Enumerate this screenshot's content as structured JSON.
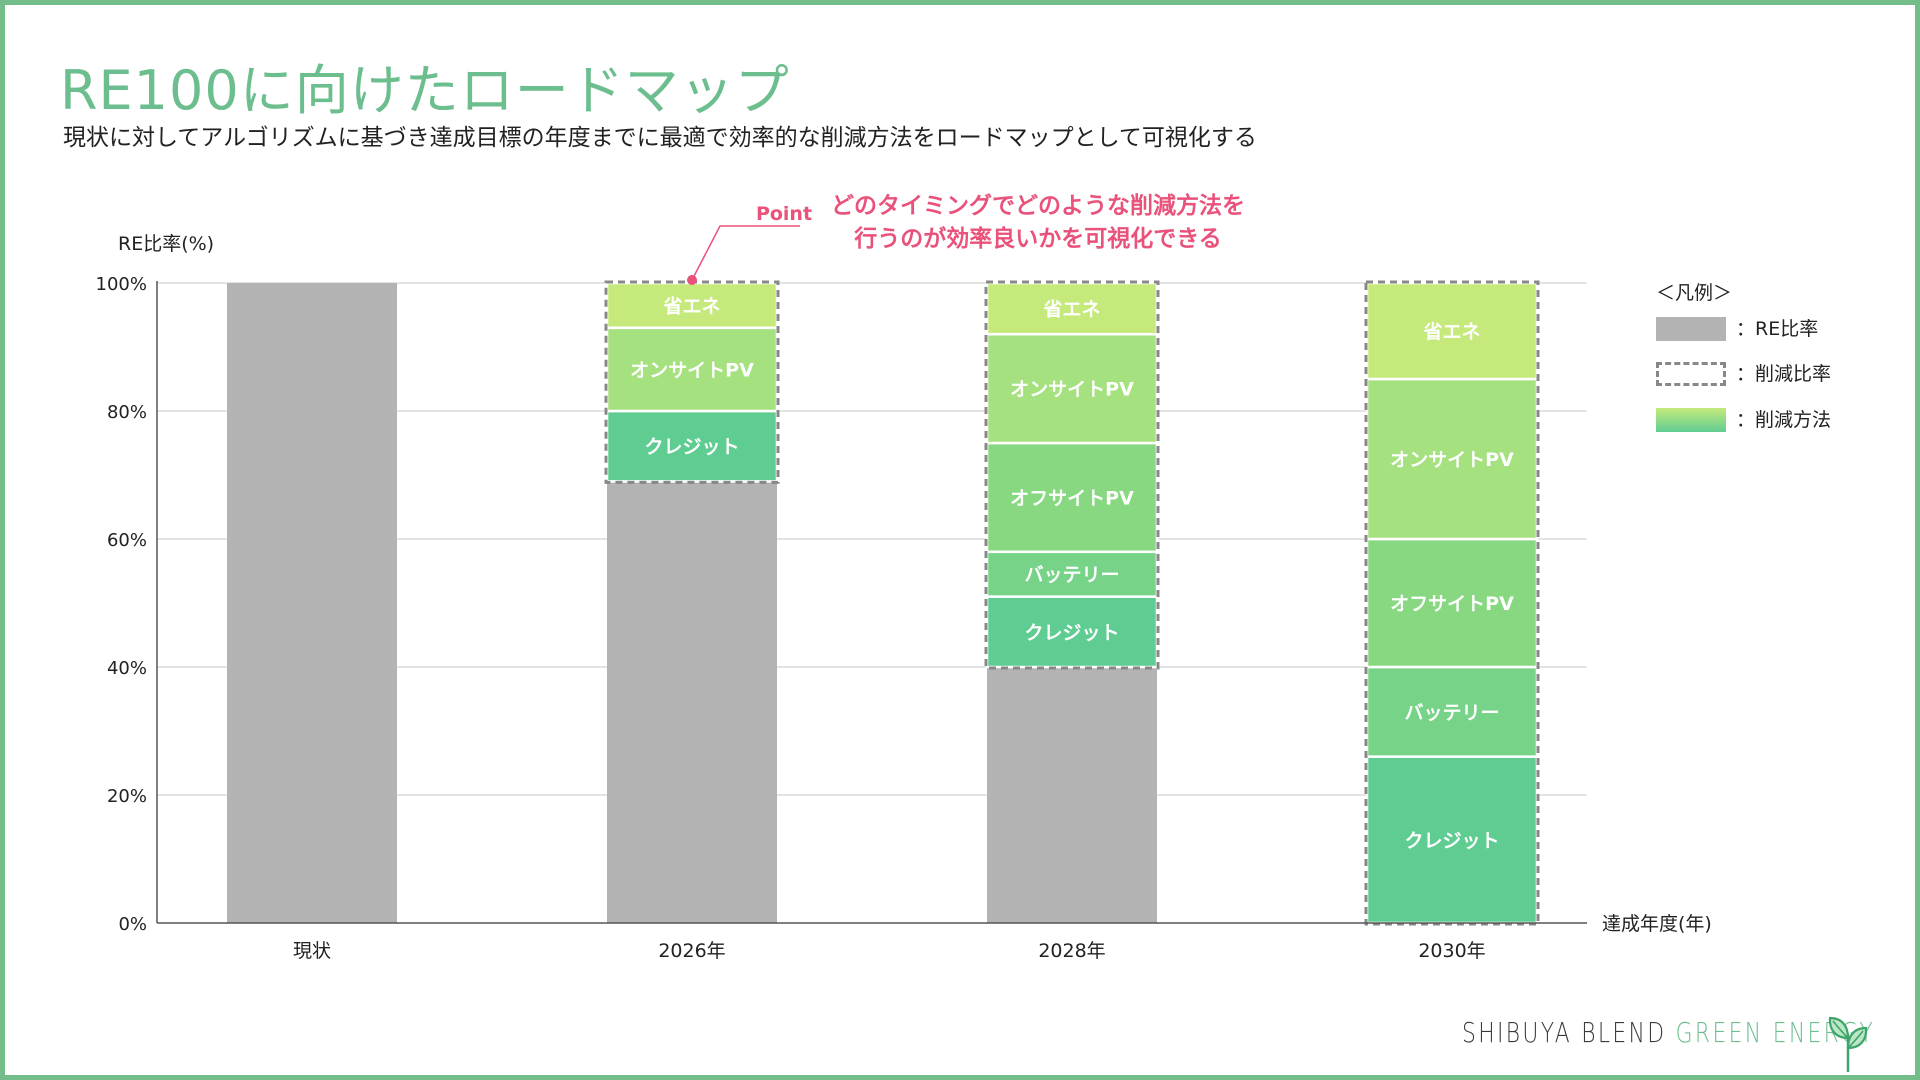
{
  "title": "RE100に向けたロードマップ",
  "subtitle": "現状に対してアルゴリズムに基づき達成目標の年度までに最適で効率的な削減方法をロードマップとして可視化する",
  "brand": {
    "part1": "SHIBUYA BLEND ",
    "part2": "GREEN ENERGY"
  },
  "callout": {
    "tag": "Point",
    "line1": "どのタイミングでどのような削減方法を",
    "line2": "行うのが効率良いかを可視化できる"
  },
  "legend": {
    "title": "＜凡例＞",
    "items": [
      {
        "type": "re",
        "label": "：RE比率"
      },
      {
        "type": "reduction",
        "label": "：削減比率"
      },
      {
        "type": "method",
        "label": "：削減方法"
      }
    ]
  },
  "colors": {
    "re": "#b3b3b3",
    "shoene": "#c5ea7b",
    "onsite": "#a6e180",
    "offsite": "#88d881",
    "battery": "#76d387",
    "credit": "#5fcc92",
    "grid": "#d3d3d3",
    "axis": "#555555",
    "accent": "#e9527a"
  },
  "chart_data": {
    "type": "bar",
    "stacked": true,
    "ylabel": "RE比率(%)",
    "xlabel": "達成年度(年)",
    "ylim": [
      0,
      100
    ],
    "yticks": [
      "0%",
      "20%",
      "40%",
      "60%",
      "80%",
      "100%"
    ],
    "categories": [
      "現状",
      "2026年",
      "2028年",
      "2030年"
    ],
    "bars": [
      {
        "category": "現状",
        "re": 100,
        "segments": []
      },
      {
        "category": "2026年",
        "re": 69,
        "segments": [
          {
            "key": "credit",
            "label": "クレジット",
            "value": 11
          },
          {
            "key": "onsite",
            "label": "オンサイトPV",
            "value": 13
          },
          {
            "key": "shoene",
            "label": "省エネ",
            "value": 7
          }
        ]
      },
      {
        "category": "2028年",
        "re": 40,
        "segments": [
          {
            "key": "credit",
            "label": "クレジット",
            "value": 11
          },
          {
            "key": "battery",
            "label": "バッテリー",
            "value": 7
          },
          {
            "key": "offsite",
            "label": "オフサイトPV",
            "value": 17
          },
          {
            "key": "onsite",
            "label": "オンサイトPV",
            "value": 17
          },
          {
            "key": "shoene",
            "label": "省エネ",
            "value": 8
          }
        ]
      },
      {
        "category": "2030年",
        "re": 0,
        "segments": [
          {
            "key": "credit",
            "label": "クレジット",
            "value": 26
          },
          {
            "key": "battery",
            "label": "バッテリー",
            "value": 14
          },
          {
            "key": "offsite",
            "label": "オフサイトPV",
            "value": 20
          },
          {
            "key": "onsite",
            "label": "オンサイトPV",
            "value": 25
          },
          {
            "key": "shoene",
            "label": "省エネ",
            "value": 15
          }
        ]
      }
    ]
  }
}
